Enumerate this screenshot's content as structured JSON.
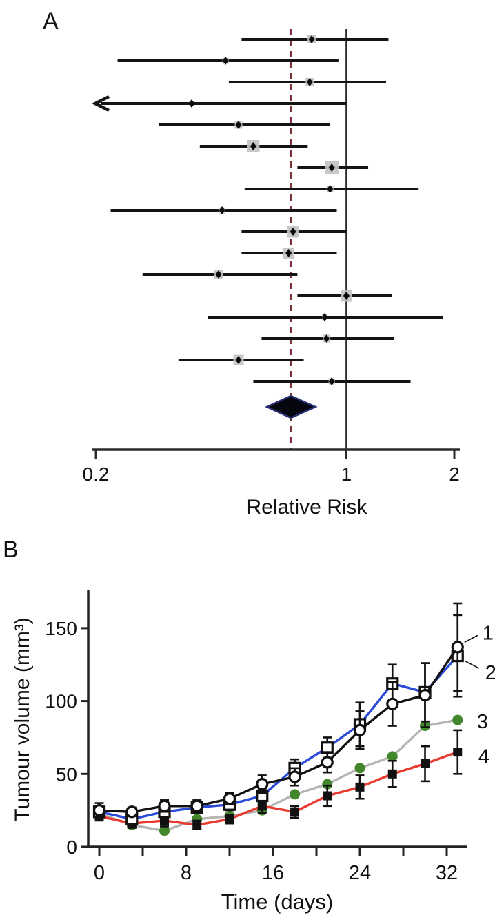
{
  "figure": {
    "panel_a_label": "A",
    "panel_b_label": "B"
  },
  "colors": {
    "ci_line": "#141414",
    "weight_square": "#c3c3c3",
    "reference_line": "#2b2b2b",
    "pooled_dashed_line": "#7c3136",
    "diamond_fill": "#06060f",
    "diamond_stroke": "#283077",
    "series_black": "#111111",
    "series_blue": "#2a4ad8",
    "series_gray": "#b5b5b5",
    "series_green": "#43872d",
    "series_red": "#e83a30",
    "error_bar": "#111111"
  },
  "chart_data": [
    {
      "type": "forest",
      "title": "",
      "xlabel": "Relative Risk",
      "x_scale": "log",
      "xlim": [
        0.2,
        2
      ],
      "x_tick_values": [
        0.2,
        1,
        2
      ],
      "x_tick_labels": [
        "0.2",
        "1",
        "2"
      ],
      "reference_value": 1,
      "pooled_line_value": 0.7,
      "studies": [
        {
          "rr": 0.8,
          "ci": [
            0.51,
            1.31
          ],
          "weight": 12
        },
        {
          "rr": 0.46,
          "ci": [
            0.23,
            0.95
          ],
          "weight": 9
        },
        {
          "rr": 0.79,
          "ci": [
            0.47,
            1.29
          ],
          "weight": 12
        },
        {
          "rr": 0.37,
          "ci": [
            0.2,
            1.0
          ],
          "weight": 7,
          "arrow_left": true
        },
        {
          "rr": 0.5,
          "ci": [
            0.3,
            0.9
          ],
          "weight": 11
        },
        {
          "rr": 0.55,
          "ci": [
            0.39,
            0.78
          ],
          "weight": 18
        },
        {
          "rr": 0.91,
          "ci": [
            0.73,
            1.15
          ],
          "weight": 20
        },
        {
          "rr": 0.9,
          "ci": [
            0.52,
            1.59
          ],
          "weight": 10
        },
        {
          "rr": 0.45,
          "ci": [
            0.22,
            0.94
          ],
          "weight": 9
        },
        {
          "rr": 0.71,
          "ci": [
            0.51,
            1.0
          ],
          "weight": 17
        },
        {
          "rr": 0.69,
          "ci": [
            0.51,
            0.94
          ],
          "weight": 16
        },
        {
          "rr": 0.44,
          "ci": [
            0.27,
            0.73
          ],
          "weight": 12
        },
        {
          "rr": 1.0,
          "ci": [
            0.73,
            1.34
          ],
          "weight": 17
        },
        {
          "rr": 0.87,
          "ci": [
            0.41,
            1.86
          ],
          "weight": 8
        },
        {
          "rr": 0.88,
          "ci": [
            0.58,
            1.36
          ],
          "weight": 11
        },
        {
          "rr": 0.5,
          "ci": [
            0.34,
            0.76
          ],
          "weight": 15
        },
        {
          "rr": 0.91,
          "ci": [
            0.55,
            1.51
          ],
          "weight": 9
        }
      ],
      "pooled": {
        "rr": 0.7,
        "ci": [
          0.6,
          0.82
        ]
      }
    },
    {
      "type": "line",
      "title": "",
      "xlabel": "Time (days)",
      "ylabel": "Tumour volume (mm³)",
      "xlim": [
        0,
        34
      ],
      "ylim": [
        0,
        175
      ],
      "x": [
        0,
        3,
        6,
        9,
        12,
        15,
        18,
        21,
        24,
        27,
        30,
        33
      ],
      "x_major_ticks": [
        0,
        8,
        16,
        24,
        32
      ],
      "x_major_tick_labels": [
        "0",
        "8",
        "16",
        "24",
        "32"
      ],
      "x_minor_ticks": [
        4,
        12,
        20,
        28
      ],
      "y_ticks": [
        0,
        50,
        100,
        150
      ],
      "y_tick_labels": [
        "0",
        "50",
        "100",
        "150"
      ],
      "series": [
        {
          "name": "1",
          "marker": "open-circle",
          "line_color_key": "series_black",
          "values": [
            25,
            24,
            28,
            28,
            33,
            43,
            48,
            58,
            80,
            98,
            104,
            137
          ],
          "errors": [
            5,
            3,
            4,
            4,
            4,
            6,
            6,
            7,
            13,
            15,
            22,
            30
          ]
        },
        {
          "name": "2",
          "marker": "open-square",
          "line_color_key": "series_blue",
          "values": [
            24,
            19,
            24,
            27,
            29,
            35,
            54,
            68,
            84,
            112,
            106,
            131
          ],
          "errors": [
            4,
            3,
            4,
            4,
            4,
            5,
            6,
            7,
            15,
            13,
            20,
            28
          ]
        },
        {
          "name": "3",
          "marker": "filled-circle",
          "line_color_key": "series_gray",
          "marker_color_key": "series_green",
          "values": [
            23,
            15,
            11,
            19,
            21,
            25,
            36,
            43,
            54,
            62,
            83,
            87
          ],
          "errors": [
            0,
            0,
            0,
            0,
            0,
            0,
            0,
            0,
            0,
            0,
            0,
            0
          ]
        },
        {
          "name": "4",
          "marker": "filled-square",
          "line_color_key": "series_red",
          "marker_color_key": "series_black",
          "values": [
            21,
            16,
            18,
            15,
            19,
            28,
            24,
            35,
            41,
            50,
            57,
            65
          ],
          "errors": [
            3,
            3,
            4,
            3,
            3,
            5,
            4,
            7,
            8,
            9,
            12,
            15
          ]
        }
      ],
      "legend_position": "right-of-last-points"
    }
  ]
}
